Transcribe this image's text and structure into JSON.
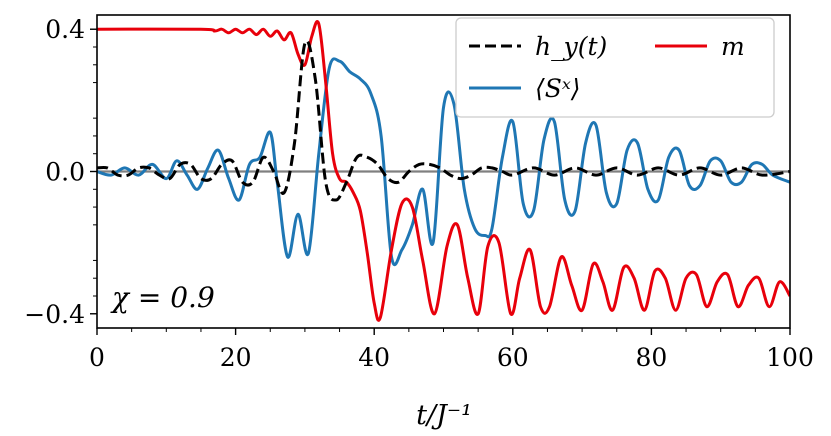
{
  "chart_data": {
    "type": "line",
    "xlabel": "t/J⁻¹",
    "ylabel": "",
    "xlim": [
      0,
      100
    ],
    "ylim": [
      -0.44,
      0.44
    ],
    "xticks": [
      {
        "value": 0,
        "label": "0"
      },
      {
        "value": 20,
        "label": "20"
      },
      {
        "value": 40,
        "label": "40"
      },
      {
        "value": 60,
        "label": "60"
      },
      {
        "value": 80,
        "label": "80"
      },
      {
        "value": 100,
        "label": "100"
      }
    ],
    "yticks": [
      {
        "value": 0.4,
        "label": "0.4"
      },
      {
        "value": 0.0,
        "label": "0.0"
      },
      {
        "value": -0.4,
        "label": "−0.4"
      }
    ],
    "annotation": "χ = 0.9",
    "reference_line": {
      "y": 0,
      "color": "#808080"
    },
    "grid": false,
    "legend_position": "top-right",
    "series": [
      {
        "name": "h_y(t)",
        "color": "#000000",
        "style": "dashed",
        "x": [
          0,
          1.5,
          3,
          4.5,
          6,
          7.5,
          9,
          10.5,
          12,
          13.5,
          15,
          16.5,
          18,
          19.5,
          21,
          22.5,
          24,
          25.5,
          27,
          28.5,
          30,
          31.5,
          33,
          34.5,
          36,
          37.5,
          39,
          40.5,
          42,
          43.5,
          45,
          46.5,
          48,
          49.5,
          51,
          52.5,
          54,
          55.5,
          57,
          58.5,
          60,
          63,
          66,
          69,
          72,
          75,
          78,
          81,
          84,
          87,
          90,
          93,
          96,
          100
        ],
        "y": [
          0.01,
          0.01,
          -0.01,
          -0.01,
          0.01,
          0.01,
          -0.01,
          -0.02,
          0.02,
          0.02,
          -0.02,
          -0.02,
          0.02,
          0.03,
          -0.03,
          -0.03,
          0.04,
          0.0,
          -0.06,
          0.08,
          0.36,
          0.26,
          -0.03,
          -0.08,
          -0.03,
          0.04,
          0.04,
          0.02,
          -0.02,
          -0.03,
          0.0,
          0.02,
          0.02,
          0.01,
          -0.01,
          -0.02,
          -0.01,
          0.01,
          0.01,
          0.0,
          -0.01,
          0.01,
          -0.01,
          0.01,
          -0.01,
          0.01,
          -0.01,
          0.01,
          -0.01,
          0.01,
          -0.01,
          0.01,
          -0.01,
          0.0
        ]
      },
      {
        "name": "⟨Sˣ⟩",
        "color": "#1f77b4",
        "style": "solid",
        "x": [
          0,
          2,
          4,
          6,
          8,
          10,
          11.5,
          13,
          14.5,
          16,
          17.5,
          19,
          20.5,
          22,
          23.5,
          25,
          26,
          27.5,
          29,
          30.5,
          32,
          33.5,
          35,
          36.5,
          38,
          39.5,
          41,
          42.5,
          44,
          45.5,
          47,
          48.5,
          50,
          51.5,
          53,
          54.5,
          56,
          57,
          58.5,
          60,
          61.5,
          63,
          64.5,
          66,
          67.5,
          69,
          70.5,
          72,
          73.5,
          75,
          76.5,
          78,
          79.5,
          81,
          82.5,
          84,
          85.5,
          87,
          88.5,
          90,
          91.5,
          93,
          94.5,
          96,
          97.5,
          100
        ],
        "y": [
          0.0,
          -0.01,
          0.01,
          -0.01,
          0.02,
          -0.02,
          0.03,
          -0.01,
          -0.05,
          0.01,
          0.06,
          -0.02,
          -0.08,
          0.02,
          0.04,
          0.11,
          -0.03,
          -0.24,
          -0.12,
          -0.23,
          0.05,
          0.29,
          0.31,
          0.28,
          0.26,
          0.22,
          0.1,
          -0.24,
          -0.22,
          -0.15,
          -0.05,
          -0.2,
          0.18,
          0.19,
          -0.05,
          -0.16,
          -0.18,
          -0.16,
          0.04,
          0.14,
          -0.09,
          -0.11,
          0.09,
          0.14,
          -0.08,
          -0.11,
          0.08,
          0.13,
          -0.06,
          -0.09,
          0.06,
          0.08,
          -0.05,
          -0.08,
          0.04,
          0.06,
          -0.04,
          -0.04,
          0.03,
          0.03,
          -0.03,
          -0.03,
          0.02,
          0.02,
          -0.01,
          -0.03
        ]
      },
      {
        "name": "m",
        "color": "#e8000b",
        "style": "solid",
        "x": [
          0,
          15,
          17,
          18,
          19,
          20,
          21,
          22,
          23,
          24,
          25,
          26,
          27,
          28,
          29,
          30,
          31,
          32,
          33,
          34,
          35,
          36,
          37,
          38,
          39,
          40,
          40.9,
          42.5,
          44,
          45.5,
          47,
          48.7,
          50.5,
          52,
          53.5,
          55,
          56.4,
          58,
          59.7,
          61,
          62.5,
          64,
          65.3,
          67,
          68.5,
          70,
          71.6,
          73,
          74.4,
          76,
          77.5,
          79,
          80.5,
          82,
          83.5,
          85,
          86.5,
          88,
          89.5,
          91,
          92.5,
          94,
          95.5,
          97,
          98.5,
          100
        ],
        "y": [
          0.4,
          0.4,
          0.395,
          0.4,
          0.39,
          0.4,
          0.39,
          0.4,
          0.385,
          0.4,
          0.38,
          0.395,
          0.37,
          0.39,
          0.33,
          0.3,
          0.38,
          0.415,
          0.25,
          0.05,
          -0.02,
          -0.03,
          -0.06,
          -0.11,
          -0.23,
          -0.37,
          -0.41,
          -0.22,
          -0.09,
          -0.1,
          -0.25,
          -0.4,
          -0.21,
          -0.15,
          -0.3,
          -0.4,
          -0.21,
          -0.2,
          -0.4,
          -0.3,
          -0.22,
          -0.38,
          -0.38,
          -0.24,
          -0.32,
          -0.39,
          -0.26,
          -0.31,
          -0.39,
          -0.27,
          -0.3,
          -0.39,
          -0.28,
          -0.3,
          -0.39,
          -0.3,
          -0.29,
          -0.38,
          -0.31,
          -0.29,
          -0.38,
          -0.32,
          -0.3,
          -0.38,
          -0.31,
          -0.35
        ]
      }
    ]
  }
}
